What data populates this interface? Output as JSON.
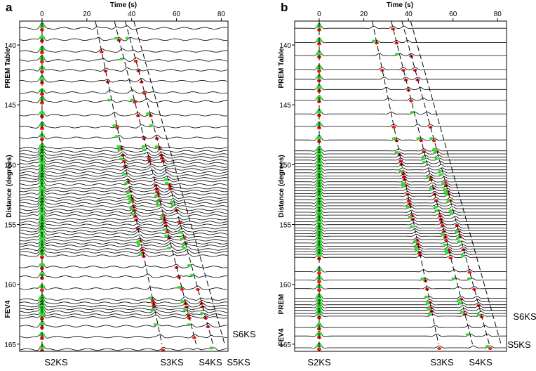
{
  "chart_data": [
    {
      "type": "seismogram",
      "panel_label": "a",
      "x_axis_title": "Time (s)",
      "y_axis_title": "Distance (degrees)",
      "xlim": [
        -10,
        83
      ],
      "xticks": [
        0,
        20,
        40,
        60,
        80
      ],
      "ylim": [
        138,
        165.6
      ],
      "yticks": [
        140,
        145,
        150,
        155,
        160,
        165
      ],
      "model_labels": [
        "PREM Table",
        "FEV4"
      ],
      "phase_labels": [
        "S2KS",
        "S3KS",
        "S4KS",
        "S5KS",
        "S6KS"
      ]
    },
    {
      "type": "seismogram",
      "panel_label": "b",
      "x_axis_title": "Time (s)",
      "y_axis_title": "Distance (degrees)",
      "xlim": [
        -11,
        84
      ],
      "xticks": [
        0,
        20,
        40,
        60,
        80
      ],
      "ylim": [
        138,
        165.6
      ],
      "yticks": [
        140,
        145,
        150,
        155,
        160,
        165
      ],
      "model_labels": [
        "PREM Table",
        "PREM",
        "FEV4"
      ],
      "phase_labels": [
        "S2KS",
        "S3KS",
        "S4KS",
        "S5KS",
        "S6KS"
      ]
    }
  ]
}
